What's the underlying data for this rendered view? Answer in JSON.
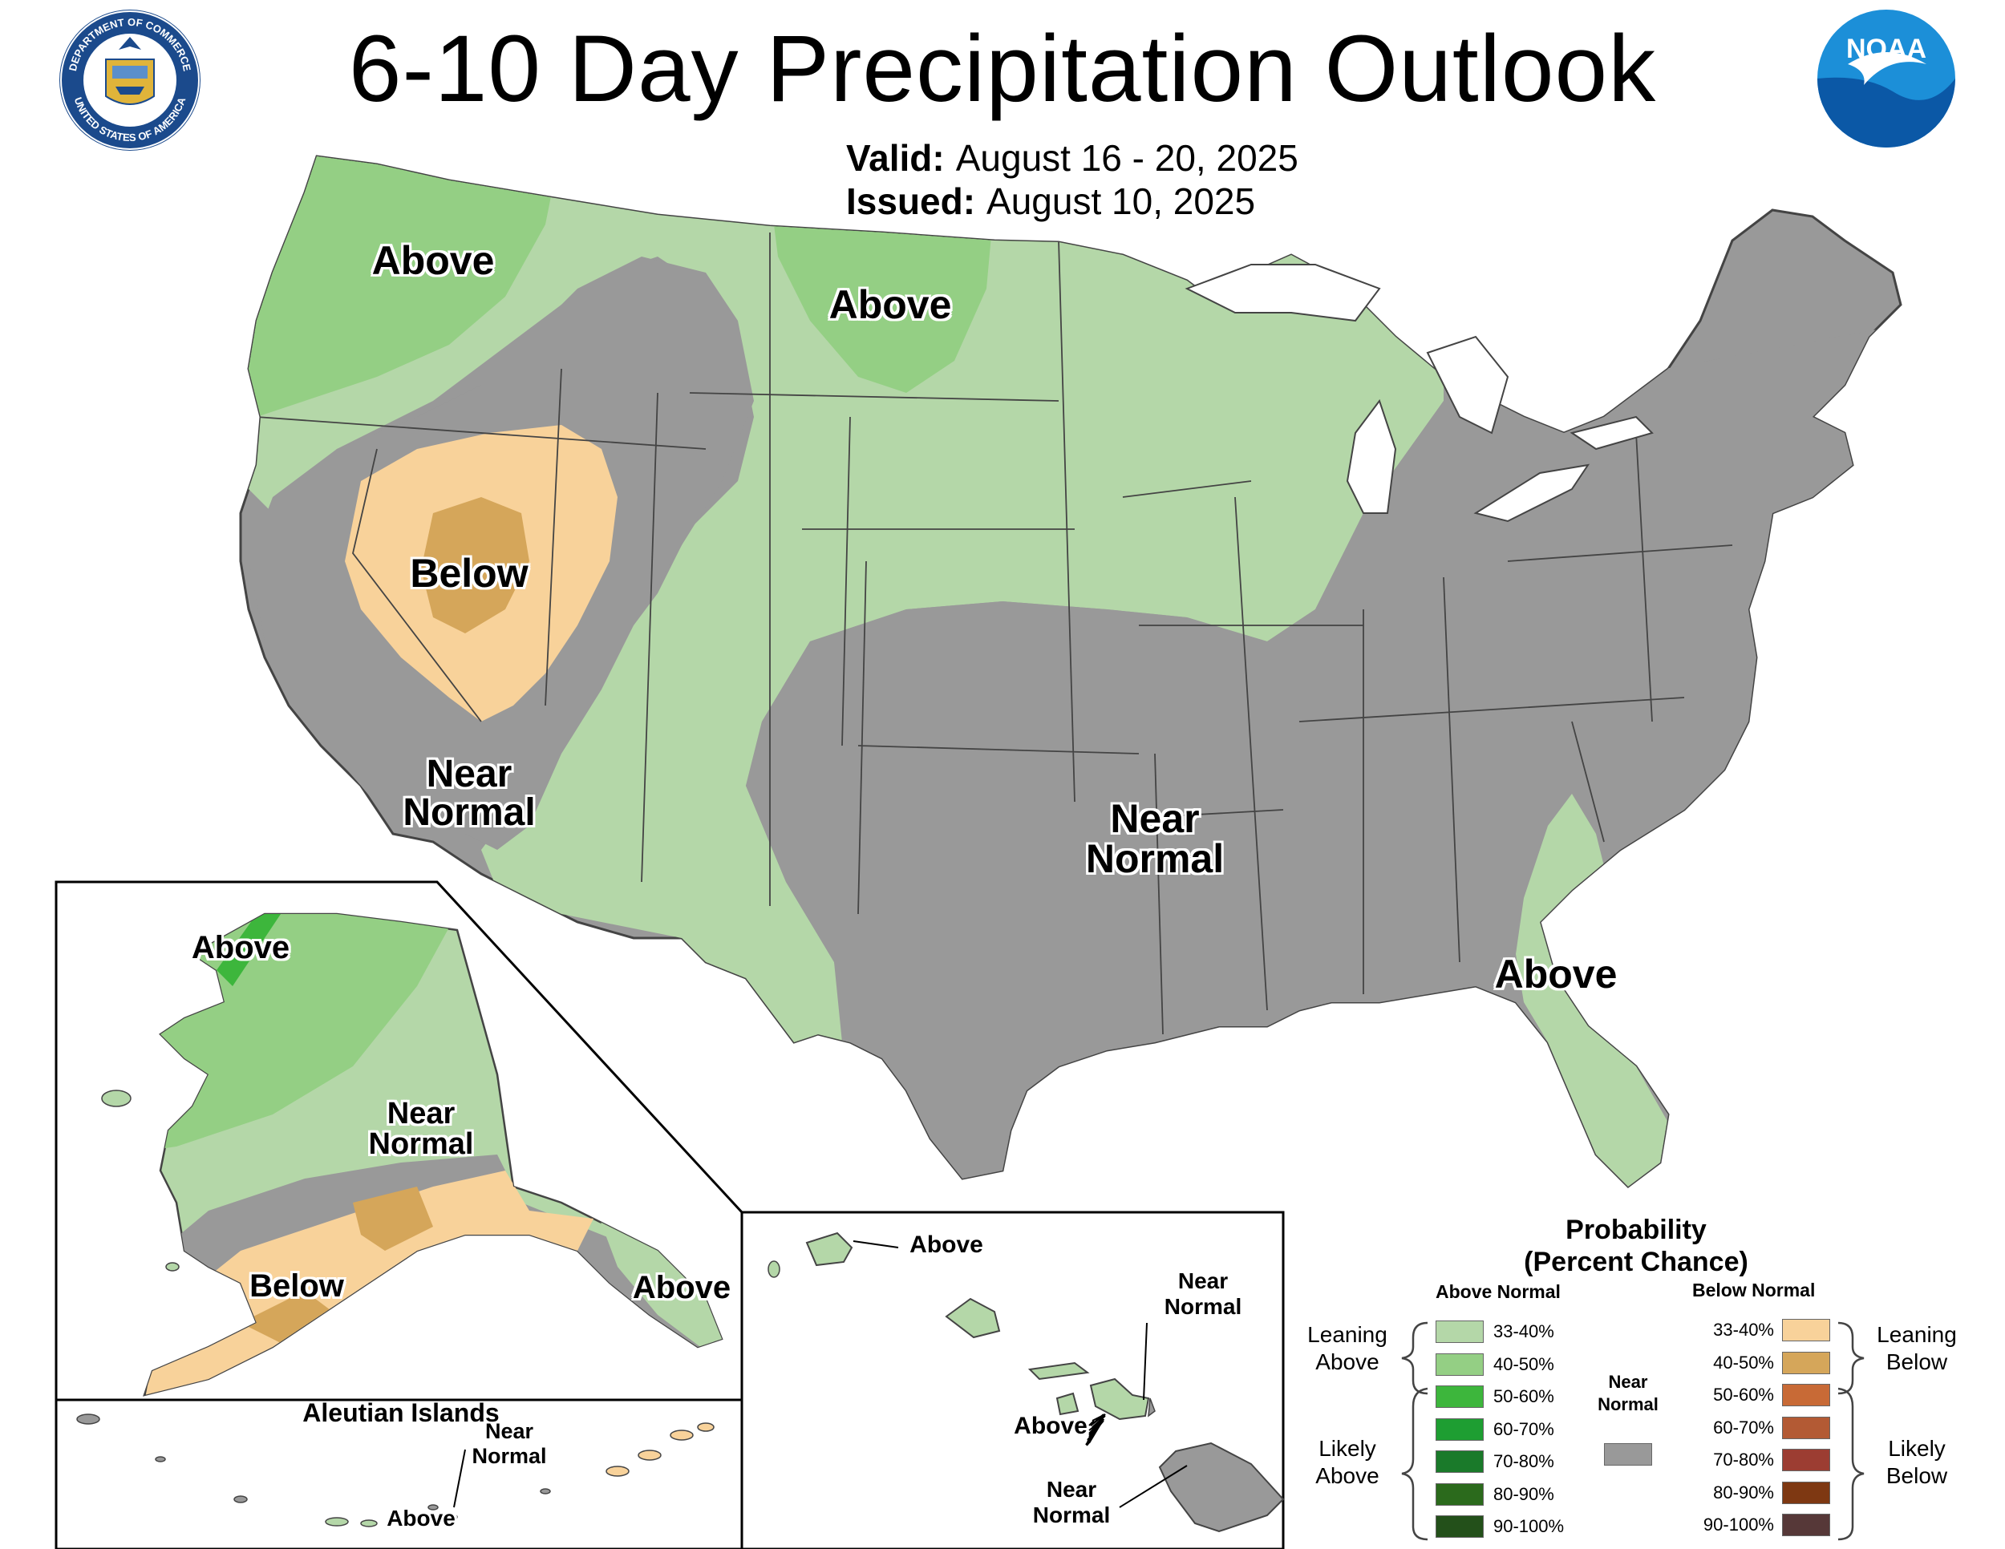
{
  "header": {
    "title": "6-10 Day Precipitation Outlook",
    "valid_label": "Valid:",
    "valid_value": "August 16 - 20, 2025",
    "issued_label": "Issued:",
    "issued_value": "August 10, 2025"
  },
  "logos": {
    "commerce_seal_text_top": "DEPARTMENT OF COMMERCE",
    "commerce_seal_text_bottom": "UNITED STATES OF AMERICA",
    "noaa_text": "NOAA"
  },
  "colors": {
    "above_33_40": "#b4d7a8",
    "above_40_50": "#94cf84",
    "above_50_60": "#3db63c",
    "above_60_70": "#1e9e32",
    "above_70_80": "#1a7a2a",
    "above_80_90": "#2b6a1c",
    "above_90_100": "#23501a",
    "below_33_40": "#f8d29a",
    "below_40_50": "#d5a65a",
    "below_50_60": "#c86a36",
    "below_60_70": "#b35a34",
    "below_70_80": "#9c3d32",
    "below_80_90": "#7e3812",
    "below_90_100": "#563838",
    "near_normal": "#999999",
    "water": "#ffffff",
    "outline": "#444444"
  },
  "map_labels": {
    "conus": {
      "above_northwest": "Above",
      "above_northern_plains": "Above",
      "below_great_basin": "Below",
      "near_normal_west_line1": "Near",
      "near_normal_west_line2": "Normal",
      "near_normal_central_line1": "Near",
      "near_normal_central_line2": "Normal",
      "above_southeast": "Above"
    },
    "alaska": {
      "above_north": "Above",
      "near_normal_line1": "Near",
      "near_normal_line2": "Normal",
      "below_south": "Below",
      "above_panhandle": "Above"
    },
    "aleutians": {
      "title": "Aleutian Islands",
      "near_normal_line1": "Near",
      "near_normal_line2": "Normal",
      "above": "Above"
    },
    "hawaii": {
      "above_kauai": "Above",
      "near_normal_maui_line1": "Near",
      "near_normal_maui_line2": "Normal",
      "above_oahu": "Above",
      "near_normal_big_island_line1": "Near",
      "near_normal_big_island_line2": "Normal"
    }
  },
  "legend": {
    "title_line1": "Probability",
    "title_line2": "(Percent Chance)",
    "above_header": "Above Normal",
    "below_header": "Below Normal",
    "leaning_above_line1": "Leaning",
    "leaning_above_line2": "Above",
    "likely_above_line1": "Likely",
    "likely_above_line2": "Above",
    "leaning_below_line1": "Leaning",
    "leaning_below_line2": "Below",
    "likely_below_line1": "Likely",
    "likely_below_line2": "Below",
    "near_normal_line1": "Near",
    "near_normal_line2": "Normal",
    "ranges": [
      "33-40%",
      "40-50%",
      "50-60%",
      "60-70%",
      "70-80%",
      "80-90%",
      "90-100%"
    ]
  }
}
